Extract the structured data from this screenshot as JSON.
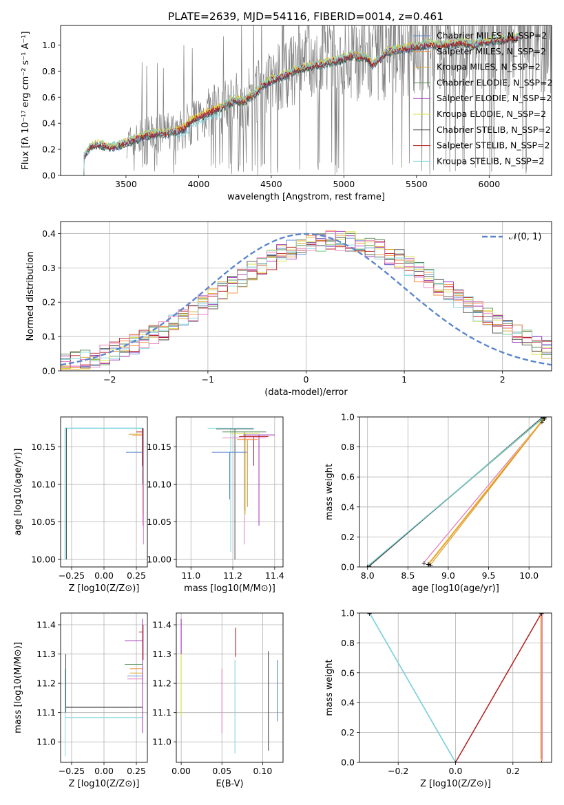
{
  "title": "PLATE=2639, MJD=54116, FIBERID=0014, z=0.461",
  "series_colors": {
    "Chabrier MILES": "#5b86cf",
    "Salpeter MILES": "#f28a30",
    "Kroupa MILES": "#d9a32b",
    "Chabrier ELODIE": "#4f8a4f",
    "Salpeter ELODIE": "#9b30b5",
    "Kroupa ELODIE": "#d8df3e",
    "Chabrier STELIB": "#4a4a4a",
    "Salpeter STELIB": "#b51b1b",
    "Kroupa STELIB": "#7ed6dc",
    "pink": "#e87bbd",
    "observed": "#7f7f7f",
    "gaussian": "#5b86cf"
  },
  "chart_data": [
    {
      "panel": "spectrum",
      "type": "line",
      "xlabel": "wavelength [Angstrom, rest frame]",
      "ylabel": "Flux [fλ 10⁻¹⁷ erg cm⁻² s⁻¹ A⁻¹]",
      "xlim": [
        3050,
        6430
      ],
      "ylim": [
        0,
        1.15
      ],
      "xticks": [
        3500,
        4000,
        4500,
        5000,
        5500,
        6000
      ],
      "yticks": [
        0.0,
        0.2,
        0.4,
        0.6,
        0.8,
        1.0
      ],
      "legend": [
        "Chabrier MILES, N_SSP=2",
        "Salpeter MILES, N_SSP=2",
        "Kroupa MILES, N_SSP=2",
        "Chabrier ELODIE, N_SSP=2",
        "Salpeter ELODIE, N_SSP=2",
        "Kroupa ELODIE, N_SSP=2",
        "Chabrier STELIB, N_SSP=2",
        "Salpeter STELIB, N_SSP=2",
        "Kroupa STELIB, N_SSP=2"
      ],
      "legend_placement": "upper right",
      "grid": false,
      "model_continuum": {
        "x": [
          3210,
          3250,
          3300,
          3350,
          3400,
          3450,
          3500,
          3550,
          3600,
          3650,
          3700,
          3750,
          3800,
          3850,
          3900,
          3950,
          4000,
          4050,
          4100,
          4150,
          4200,
          4250,
          4300,
          4350,
          4400,
          4450,
          4500,
          4550,
          4600,
          4650,
          4700,
          4750,
          4800,
          4850,
          4900,
          4950,
          5000,
          5050,
          5100,
          5150,
          5200,
          5250,
          5300,
          5350,
          5400,
          5450,
          5500,
          5550,
          5600,
          5650,
          5700,
          5750,
          5800,
          5850,
          5900,
          5950,
          6000,
          6050,
          6100,
          6150,
          6200
        ],
        "y": [
          0.14,
          0.22,
          0.24,
          0.23,
          0.22,
          0.23,
          0.25,
          0.27,
          0.29,
          0.31,
          0.32,
          0.32,
          0.33,
          0.34,
          0.36,
          0.42,
          0.45,
          0.47,
          0.5,
          0.52,
          0.55,
          0.58,
          0.57,
          0.6,
          0.64,
          0.7,
          0.73,
          0.75,
          0.77,
          0.8,
          0.82,
          0.83,
          0.85,
          0.85,
          0.87,
          0.88,
          0.9,
          0.92,
          0.91,
          0.91,
          0.85,
          0.9,
          0.95,
          0.96,
          0.97,
          0.98,
          0.99,
          1.0,
          1.01,
          1.0,
          1.0,
          1.01,
          1.02,
          1.01,
          1.0,
          1.03,
          1.03,
          1.04,
          1.04,
          1.05,
          1.06
        ]
      },
      "observed_note": "noisy observed spectrum (grey) spanning ~3500-6430 A"
    },
    {
      "panel": "residuals",
      "type": "line",
      "xlabel": "(data-model)/error",
      "ylabel": "Normed distribution",
      "xlim": [
        -2.5,
        2.5
      ],
      "ylim": [
        0,
        0.435
      ],
      "xticks": [
        -2,
        -1,
        0,
        1,
        2
      ],
      "yticks": [
        0.0,
        0.1,
        0.2,
        0.3,
        0.4
      ],
      "grid": true,
      "legend": [
        "𝒩(0, 1)"
      ],
      "legend_placement": "upper right",
      "gaussian": {
        "mean": 0,
        "sigma": 1
      }
    },
    {
      "panel": "age-vs-Z",
      "type": "scatter",
      "xlabel": "Z [log10(Z/Z⊙)]",
      "ylabel": "age  [log10(age/yr)]",
      "xlim": [
        -0.335,
        0.335
      ],
      "ylim": [
        9.99,
        10.19
      ],
      "xticks": [
        -0.25,
        0.0,
        0.25
      ],
      "yticks": [
        10.0,
        10.05,
        10.1,
        10.15
      ],
      "grid": true
    },
    {
      "panel": "age-vs-mass",
      "type": "scatter",
      "xlabel": "mass [log10(M/M⊙)]",
      "ylabel": "",
      "xlim": [
        10.93,
        11.44
      ],
      "ylim": [
        9.99,
        10.19
      ],
      "xticks": [
        11.0,
        11.2,
        11.4
      ],
      "yticks": [
        10.0,
        10.05,
        10.1,
        10.15
      ],
      "grid": true
    },
    {
      "panel": "massweight-vs-age",
      "type": "line",
      "xlabel": "age  [log10(age/yr)]",
      "ylabel": "mass weight",
      "xlim": [
        7.9,
        10.28
      ],
      "ylim": [
        0.0,
        1.0
      ],
      "xticks": [
        8.0,
        8.5,
        9.0,
        9.5,
        10.0
      ],
      "yticks": [
        0.0,
        0.2,
        0.4,
        0.6,
        0.8,
        1.0
      ],
      "grid": true
    },
    {
      "panel": "mass-vs-Z",
      "type": "scatter",
      "xlabel": "Z [log10(Z/Z⊙)]",
      "ylabel": "mass [log10(M/M⊙)]",
      "xlim": [
        -0.335,
        0.335
      ],
      "ylim": [
        10.93,
        11.44
      ],
      "xticks": [
        -0.25,
        0.0,
        0.25
      ],
      "yticks": [
        11.0,
        11.1,
        11.2,
        11.3,
        11.4
      ],
      "grid": true
    },
    {
      "panel": "mass-vs-EBV",
      "type": "scatter",
      "xlabel": "E(B-V)",
      "ylabel": "",
      "xlim": [
        -0.006,
        0.125
      ],
      "ylim": [
        10.93,
        11.44
      ],
      "xticks": [
        0.0,
        0.05,
        0.1
      ],
      "yticks": [
        11.0,
        11.1,
        11.2,
        11.3,
        11.4
      ],
      "grid": true
    },
    {
      "panel": "massweight-vs-Z",
      "type": "line",
      "xlabel": "Z [log10(Z/Z⊙)]",
      "ylabel": "mass weight",
      "xlim": [
        -0.335,
        0.335
      ],
      "ylim": [
        0.0,
        1.0
      ],
      "xticks": [
        -0.2,
        0.0,
        0.2
      ],
      "yticks": [
        0.0,
        0.2,
        0.4,
        0.6,
        0.8,
        1.0
      ],
      "grid": true
    }
  ]
}
